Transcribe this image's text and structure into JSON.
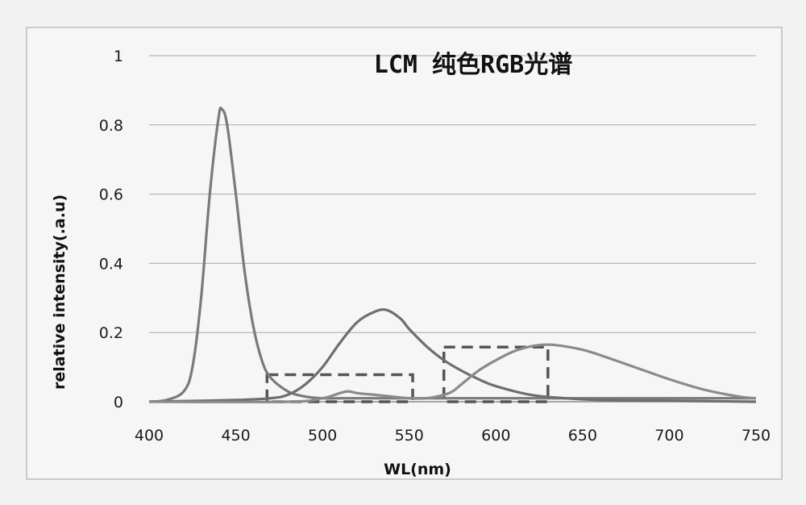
{
  "chart_data": {
    "type": "line",
    "title": "LCM 纯色RGB光谱",
    "xlabel": "WL(nm)",
    "ylabel": "relative intensity(.a.u)",
    "xlim": [
      400,
      750
    ],
    "ylim": [
      0,
      1
    ],
    "x_ticks": [
      "400",
      "450",
      "500",
      "550",
      "600",
      "650",
      "700",
      "750"
    ],
    "y_ticks": [
      "0",
      "0.2",
      "0.4",
      "0.6",
      "0.8",
      "1"
    ],
    "grid": "horizontal",
    "legend": "none",
    "series": [
      {
        "color": "#7a7a7a",
        "x": [
          400,
          410,
          420,
          425,
          430,
          435,
          440,
          442,
          445,
          450,
          455,
          460,
          465,
          470,
          480,
          490,
          500,
          510,
          520,
          530,
          540,
          550,
          560,
          570,
          580,
          600,
          650,
          700,
          750
        ],
        "y": [
          0.0,
          0.005,
          0.03,
          0.1,
          0.3,
          0.6,
          0.82,
          0.845,
          0.8,
          0.6,
          0.38,
          0.22,
          0.12,
          0.07,
          0.03,
          0.015,
          0.01,
          0.01,
          0.01,
          0.01,
          0.01,
          0.01,
          0.01,
          0.01,
          0.01,
          0.01,
          0.01,
          0.01,
          0.01
        ]
      },
      {
        "color": "#6e6e6e",
        "x": [
          400,
          450,
          470,
          480,
          490,
          500,
          510,
          520,
          530,
          537,
          545,
          550,
          560,
          570,
          580,
          590,
          600,
          620,
          640,
          660,
          700,
          750
        ],
        "y": [
          0.0,
          0.005,
          0.01,
          0.02,
          0.05,
          0.1,
          0.17,
          0.23,
          0.26,
          0.265,
          0.24,
          0.21,
          0.16,
          0.12,
          0.09,
          0.065,
          0.045,
          0.02,
          0.01,
          0.005,
          0.003,
          0.0
        ]
      },
      {
        "color": "#8a8a8a",
        "x": [
          400,
          480,
          500,
          510,
          515,
          520,
          530,
          540,
          550,
          560,
          570,
          575,
          580,
          590,
          600,
          610,
          620,
          630,
          640,
          650,
          660,
          680,
          700,
          720,
          740,
          750
        ],
        "y": [
          0.0,
          0.0,
          0.01,
          0.025,
          0.03,
          0.025,
          0.02,
          0.015,
          0.01,
          0.01,
          0.02,
          0.03,
          0.05,
          0.09,
          0.12,
          0.145,
          0.16,
          0.165,
          0.16,
          0.15,
          0.135,
          0.1,
          0.065,
          0.035,
          0.015,
          0.01
        ]
      }
    ],
    "annotations": [
      {
        "type": "dashed-box",
        "x_range": [
          468,
          552
        ],
        "y_range": [
          0,
          0.078
        ]
      },
      {
        "type": "dashed-box",
        "x_range": [
          570,
          630
        ],
        "y_range": [
          0,
          0.158
        ]
      }
    ]
  }
}
